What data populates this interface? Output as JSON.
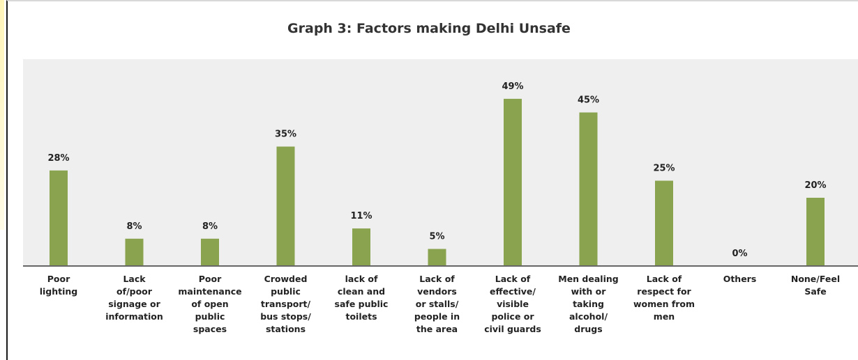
{
  "chart_data": {
    "type": "bar",
    "title": "Graph 3: Factors making Delhi Unsafe",
    "categories": [
      "Poor\nlighting",
      "Lack\nof/poor\nsignage or\ninformation",
      "Poor\nmaintenance\nof open\npublic\nspaces",
      "Crowded\npublic\ntransport/\nbus stops/\nstations",
      "lack of\nclean and\nsafe public\ntoilets",
      "Lack of\nvendors\nor stalls/\npeople in\nthe area",
      "Lack of\neffective/\nvisible\npolice or\ncivil guards",
      "Men dealing\nwith or\ntaking\nalcohol/\ndrugs",
      "Lack of\nrespect for\nwomen from\nmen",
      "Others",
      "None/Feel\nSafe"
    ],
    "values": [
      28,
      8,
      8,
      35,
      11,
      5,
      49,
      45,
      25,
      0,
      20
    ],
    "value_labels": [
      "28%",
      "8%",
      "8%",
      "35%",
      "11%",
      "5%",
      "49%",
      "45%",
      "25%",
      "0%",
      "20%"
    ],
    "ylim": [
      0,
      50
    ],
    "grid": false,
    "legend": "none",
    "colors": {
      "bar": "#8aa34e",
      "plot_background": "#efefef",
      "axis": "#666666"
    }
  }
}
